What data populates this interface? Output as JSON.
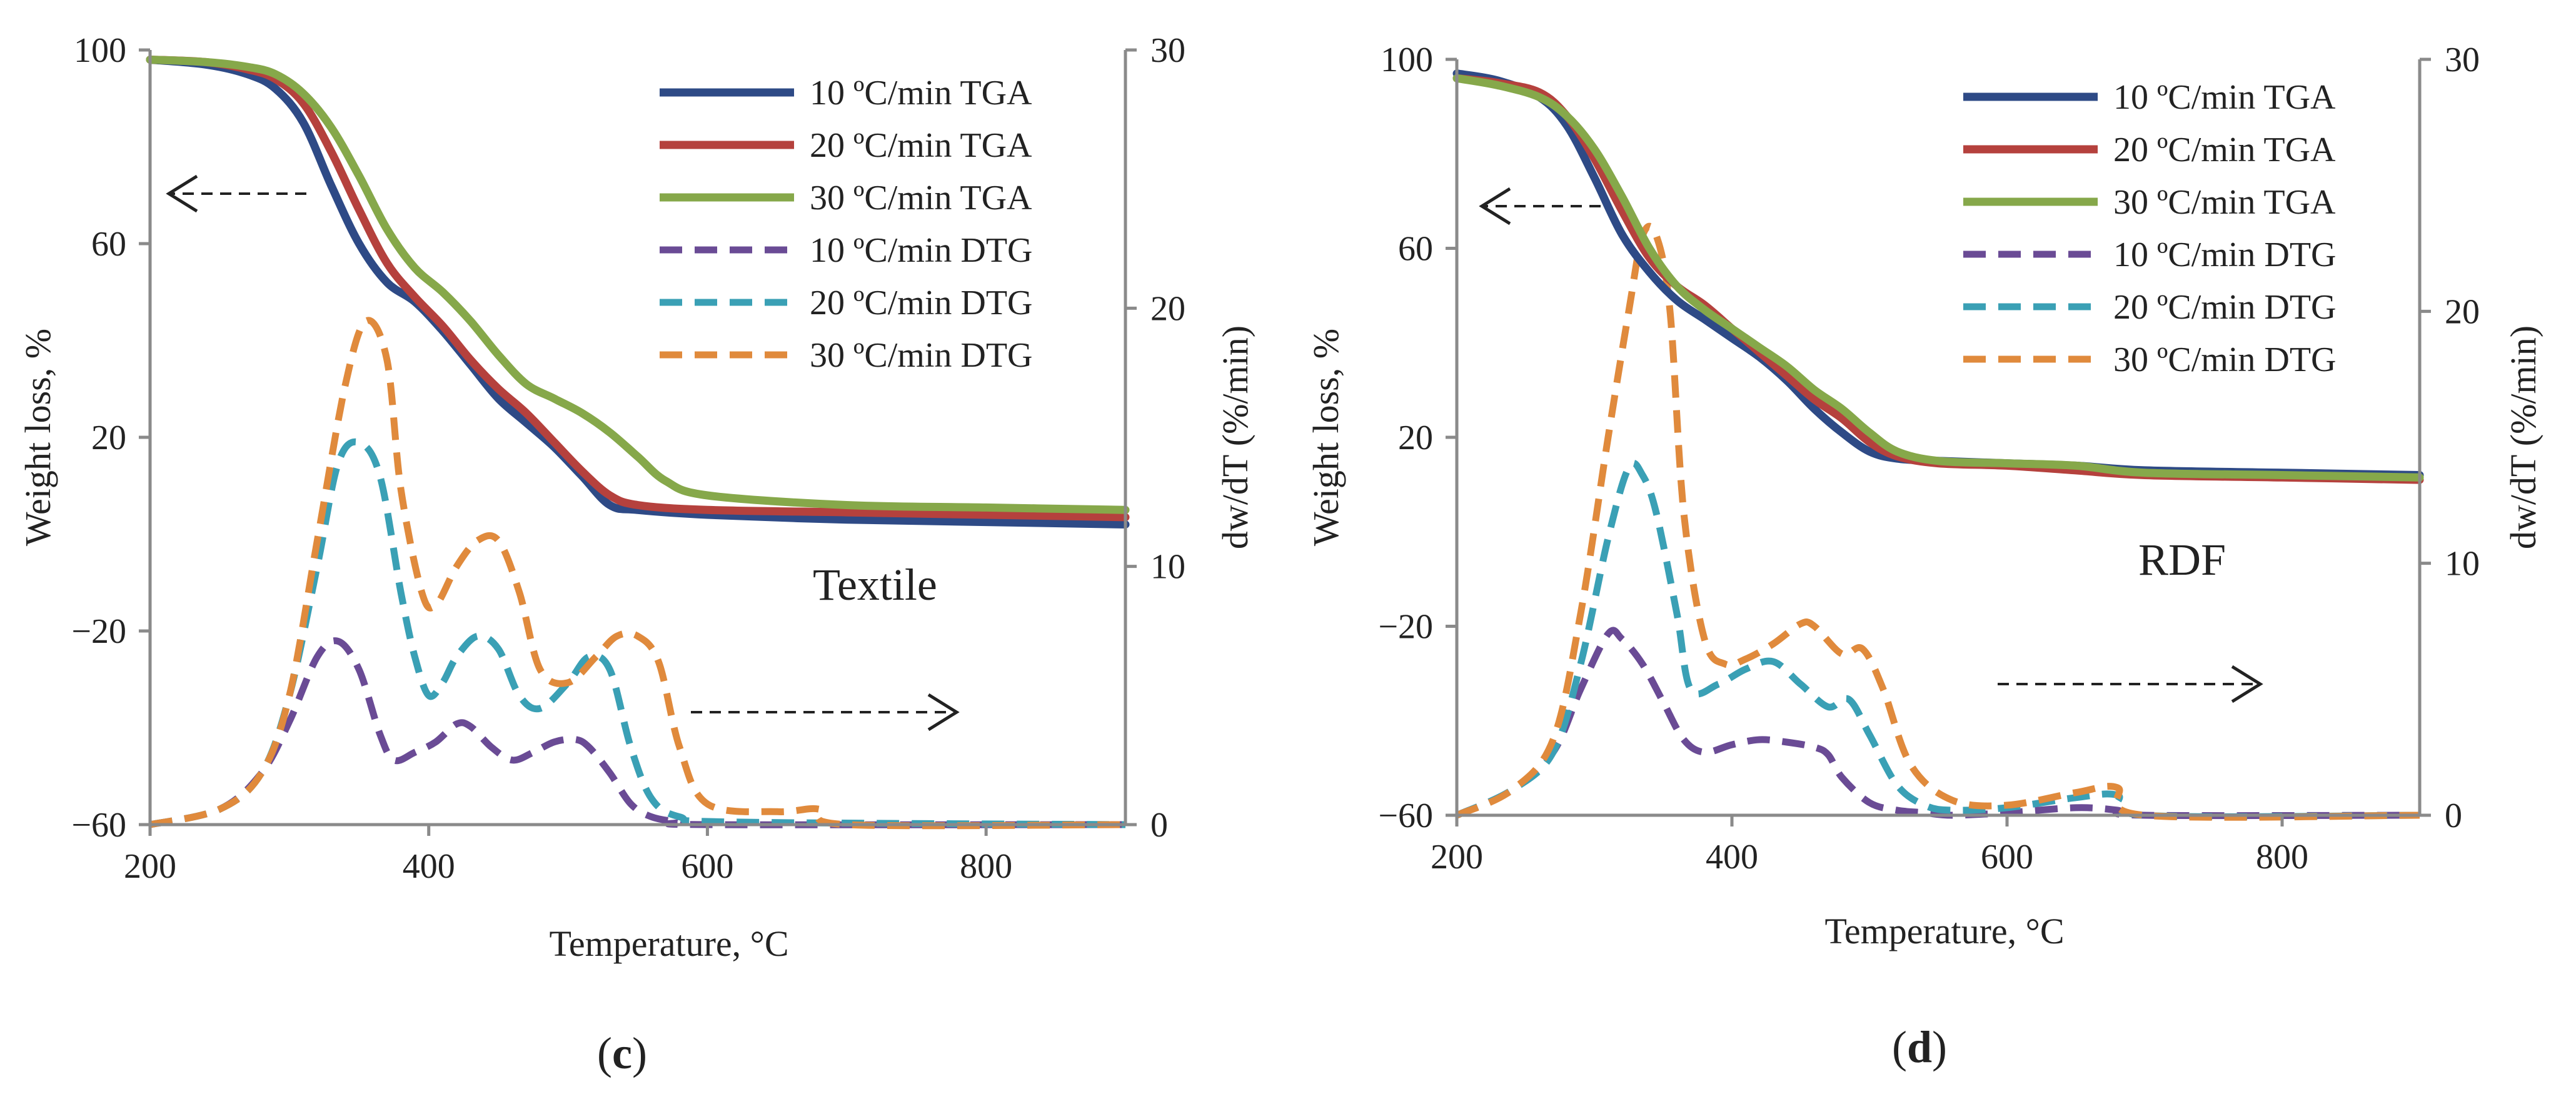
{
  "chart_data": [
    {
      "type": "line",
      "panel_label": "c",
      "annotation": "Textile",
      "xlabel": "Temperature, °C",
      "ylabel_left": "Weight loss, %",
      "ylabel_right": "dw/dT (%/min)",
      "xlim": [
        200,
        900
      ],
      "ylim_left": [
        -60,
        100
      ],
      "ylim_right": [
        0,
        30
      ],
      "x_ticks": [
        "200",
        "400",
        "600",
        "800"
      ],
      "y_left_ticks": [
        "−60",
        "−20",
        "20",
        "60",
        "100"
      ],
      "y_right_ticks": [
        "0",
        "10",
        "20",
        "30"
      ],
      "series": [
        {
          "name": "10 ºC/min TGA",
          "axis": "left",
          "color": "#2e4a86",
          "style": "solid",
          "x": [
            200,
            240,
            270,
            290,
            310,
            330,
            350,
            370,
            390,
            410,
            430,
            450,
            470,
            490,
            510,
            530,
            550,
            600,
            700,
            800,
            900
          ],
          "y": [
            98,
            97,
            95,
            92,
            85,
            72,
            60,
            52,
            48,
            42,
            35,
            28,
            23,
            18,
            12,
            6,
            5,
            4,
            3,
            2.5,
            2
          ]
        },
        {
          "name": "20 ºC/min TGA",
          "axis": "left",
          "color": "#b5413d",
          "style": "solid",
          "x": [
            200,
            240,
            270,
            290,
            310,
            330,
            350,
            370,
            390,
            410,
            430,
            450,
            470,
            490,
            510,
            530,
            550,
            600,
            700,
            800,
            900
          ],
          "y": [
            98,
            97.5,
            96,
            94,
            89,
            79,
            67,
            56,
            49,
            43,
            36,
            30,
            25,
            19,
            13,
            8,
            6,
            5,
            4.5,
            4,
            3.5
          ]
        },
        {
          "name": "30 ºC/min TGA",
          "axis": "left",
          "color": "#86a84a",
          "style": "solid",
          "x": [
            200,
            240,
            270,
            290,
            310,
            330,
            350,
            370,
            390,
            410,
            430,
            450,
            470,
            490,
            510,
            530,
            550,
            570,
            600,
            700,
            800,
            900
          ],
          "y": [
            98,
            97.5,
            96.5,
            95,
            91,
            84,
            74,
            63,
            55,
            50,
            44,
            37,
            31,
            28,
            25,
            21,
            16,
            11,
            8,
            6,
            5.5,
            5
          ]
        },
        {
          "name": "10 ºC/min DTG",
          "axis": "right",
          "color": "#6a4b95",
          "style": "dashed",
          "x": [
            200,
            250,
            280,
            300,
            320,
            335,
            350,
            365,
            375,
            390,
            405,
            420,
            430,
            445,
            460,
            475,
            490,
            505,
            515,
            530,
            545,
            560,
            580,
            600,
            900
          ],
          "y": [
            0,
            0.6,
            2,
            4,
            6.5,
            7.1,
            6,
            3.5,
            2.5,
            2.8,
            3.2,
            3.9,
            3.8,
            3,
            2.5,
            2.8,
            3.2,
            3.3,
            3,
            2,
            0.8,
            0.3,
            0.1,
            0,
            0
          ]
        },
        {
          "name": "20 ºC/min DTG",
          "axis": "right",
          "color": "#3aa0b5",
          "style": "dashed",
          "x": [
            200,
            250,
            280,
            300,
            320,
            335,
            350,
            365,
            380,
            390,
            400,
            410,
            420,
            435,
            450,
            465,
            480,
            500,
            515,
            530,
            545,
            560,
            580,
            620,
            900
          ],
          "y": [
            0,
            0.6,
            2,
            5,
            10,
            14,
            14.8,
            13.5,
            9,
            6.5,
            5,
            5.5,
            6.5,
            7.3,
            6.8,
            5,
            4.5,
            5.5,
            6.5,
            6,
            3,
            1,
            0.3,
            0.1,
            0
          ]
        },
        {
          "name": "30 ºC/min DTG",
          "axis": "right",
          "color": "#e08a3c",
          "style": "dashed",
          "x": [
            200,
            250,
            280,
            300,
            320,
            340,
            355,
            370,
            380,
            395,
            405,
            420,
            435,
            450,
            465,
            480,
            500,
            520,
            535,
            550,
            565,
            580,
            600,
            650,
            680,
            700,
            900
          ],
          "y": [
            0,
            0.6,
            2,
            5,
            11,
            17,
            19.5,
            18,
            13,
            9,
            8.5,
            10,
            11,
            11,
            9,
            6,
            5.5,
            6.5,
            7.3,
            7.3,
            6.3,
            3,
            0.8,
            0.5,
            0.6,
            0,
            0
          ]
        }
      ]
    },
    {
      "type": "line",
      "panel_label": "d",
      "annotation": "RDF",
      "xlabel": "Temperature, °C",
      "ylabel_left": "Weight loss, %",
      "ylabel_right": "dw/dT (%/min)",
      "xlim": [
        200,
        900
      ],
      "ylim_left": [
        -60,
        100
      ],
      "ylim_right": [
        0,
        30
      ],
      "x_ticks": [
        "200",
        "400",
        "600",
        "800"
      ],
      "y_left_ticks": [
        "−60",
        "−20",
        "20",
        "60",
        "100"
      ],
      "y_right_ticks": [
        "0",
        "10",
        "20",
        "30"
      ],
      "series": [
        {
          "name": "10 ºC/min TGA",
          "axis": "left",
          "color": "#2e4a86",
          "style": "solid",
          "x": [
            200,
            230,
            260,
            280,
            300,
            320,
            340,
            360,
            380,
            400,
            420,
            440,
            460,
            480,
            500,
            520,
            550,
            600,
            650,
            700,
            800,
            900
          ],
          "y": [
            97,
            95.5,
            92,
            86,
            75,
            63,
            55,
            49,
            45,
            41,
            37,
            32,
            26,
            21,
            17,
            15.5,
            15,
            14.5,
            14,
            13,
            12.5,
            12
          ]
        },
        {
          "name": "20 ºC/min TGA",
          "axis": "left",
          "color": "#b5413d",
          "style": "solid",
          "x": [
            200,
            230,
            260,
            280,
            300,
            320,
            340,
            360,
            380,
            400,
            420,
            440,
            460,
            480,
            500,
            520,
            550,
            600,
            650,
            700,
            800,
            900
          ],
          "y": [
            96,
            95,
            93,
            88,
            79,
            68,
            58,
            52,
            48,
            43,
            38,
            33,
            28,
            24,
            19,
            16,
            14.5,
            14,
            13,
            12,
            11.5,
            11
          ]
        },
        {
          "name": "30 ºC/min TGA",
          "axis": "left",
          "color": "#86a84a",
          "style": "solid",
          "x": [
            200,
            230,
            260,
            280,
            300,
            320,
            340,
            360,
            380,
            400,
            420,
            440,
            460,
            480,
            500,
            520,
            550,
            600,
            650,
            700,
            800,
            900
          ],
          "y": [
            96,
            94.5,
            92,
            88,
            81,
            71,
            60,
            52,
            47,
            43,
            39,
            35,
            30,
            26,
            21,
            17,
            15,
            14.5,
            14,
            12.5,
            12,
            11.5
          ]
        },
        {
          "name": "10 ºC/min DTG",
          "axis": "right",
          "color": "#6a4b95",
          "style": "dashed",
          "x": [
            200,
            240,
            270,
            290,
            310,
            320,
            335,
            350,
            365,
            380,
            400,
            420,
            440,
            460,
            470,
            480,
            500,
            520,
            540,
            560,
            600,
            650,
            680,
            700,
            900
          ],
          "y": [
            0,
            1,
            2.5,
            5,
            7.2,
            7,
            6,
            4.5,
            3,
            2.5,
            2.8,
            3,
            2.9,
            2.7,
            2.4,
            1.5,
            0.5,
            0.2,
            0.1,
            0,
            0.1,
            0.3,
            0.2,
            0,
            0
          ]
        },
        {
          "name": "20 ºC/min DTG",
          "axis": "right",
          "color": "#3aa0b5",
          "style": "dashed",
          "x": [
            200,
            240,
            270,
            290,
            310,
            325,
            335,
            345,
            360,
            370,
            390,
            410,
            430,
            450,
            470,
            485,
            500,
            520,
            540,
            560,
            600,
            650,
            680,
            700,
            900
          ],
          "y": [
            0,
            1,
            2.5,
            6,
            11,
            13.8,
            13.5,
            12,
            8,
            5,
            5.2,
            5.8,
            6.1,
            5.2,
            4.3,
            4.6,
            3.2,
            1.2,
            0.4,
            0.2,
            0.3,
            0.7,
            0.8,
            0,
            0
          ]
        },
        {
          "name": "30 ºC/min DTG",
          "axis": "right",
          "color": "#e08a3c",
          "style": "dashed",
          "x": [
            200,
            240,
            270,
            290,
            310,
            325,
            335,
            345,
            355,
            365,
            380,
            395,
            410,
            430,
            450,
            460,
            480,
            495,
            510,
            530,
            560,
            600,
            650,
            680,
            700,
            900
          ],
          "y": [
            0,
            1,
            3,
            8,
            15,
            20,
            23,
            23,
            20,
            12,
            7,
            6,
            6.2,
            6.8,
            7.6,
            7.5,
            6.4,
            6.6,
            5,
            2,
            0.6,
            0.4,
            0.9,
            1.1,
            0,
            0
          ]
        }
      ]
    }
  ]
}
